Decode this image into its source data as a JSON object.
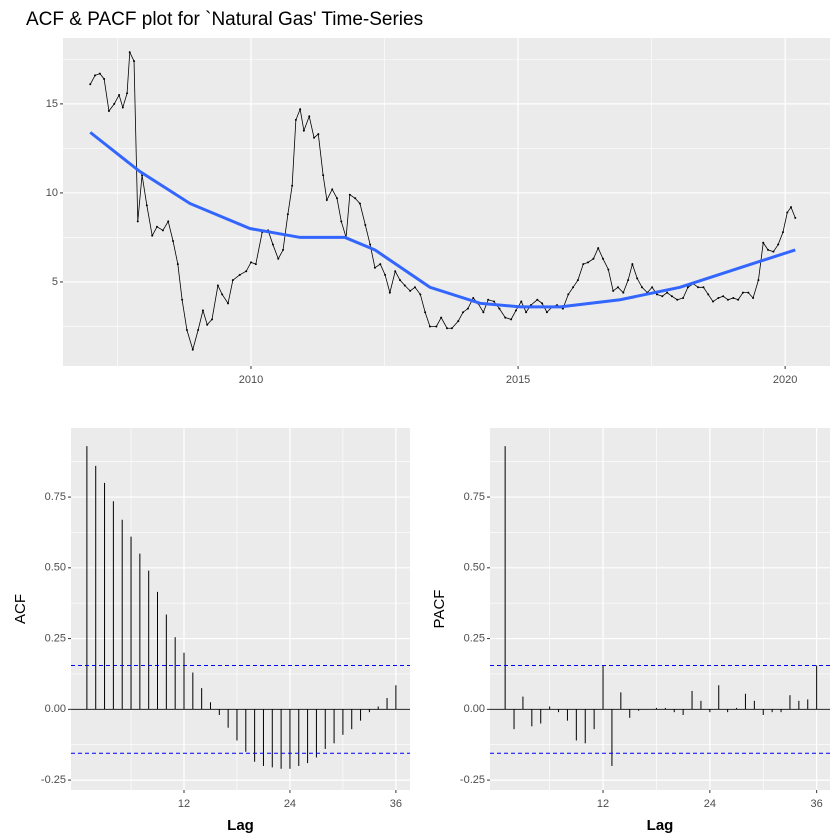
{
  "chart_data": [
    {
      "type": "line",
      "title": "ACF & PACF plot for `Natural Gas' Time-Series",
      "series": [
        {
          "color": "#000000",
          "points": true,
          "x": [
            2006.99,
            2007.08,
            2007.17,
            2007.25,
            2007.34,
            2007.44,
            2007.53,
            2007.6,
            2007.68,
            2007.73,
            2007.81,
            2007.88,
            2007.96,
            2008.05,
            2008.15,
            2008.24,
            2008.35,
            2008.45,
            2008.54,
            2008.63,
            2008.71,
            2008.8,
            2008.91,
            2009.01,
            2009.1,
            2009.18,
            2009.27,
            2009.38,
            2009.46,
            2009.57,
            2009.66,
            2009.79,
            2009.91,
            2010.0,
            2010.09,
            2010.21,
            2010.32,
            2010.41,
            2010.51,
            2010.6,
            2010.69,
            2010.77,
            2010.84,
            2010.92,
            2010.99,
            2011.09,
            2011.18,
            2011.26,
            2011.35,
            2011.42,
            2011.52,
            2011.61,
            2011.69,
            2011.78,
            2011.85,
            2011.95,
            2012.04,
            2012.14,
            2012.23,
            2012.32,
            2012.42,
            2012.51,
            2012.6,
            2012.7,
            2012.79,
            2012.88,
            2012.98,
            2013.07,
            2013.17,
            2013.26,
            2013.35,
            2013.47,
            2013.56,
            2013.67,
            2013.76,
            2013.88,
            2013.97,
            2014.06,
            2014.16,
            2014.25,
            2014.35,
            2014.44,
            2014.55,
            2014.65,
            2014.76,
            2014.87,
            2014.96,
            2015.06,
            2015.15,
            2015.24,
            2015.36,
            2015.45,
            2015.54,
            2015.64,
            2015.73,
            2015.84,
            2015.94,
            2016.03,
            2016.12,
            2016.22,
            2016.31,
            2016.41,
            2016.5,
            2016.59,
            2016.69,
            2016.78,
            2016.87,
            2016.97,
            2017.06,
            2017.14,
            2017.23,
            2017.32,
            2017.42,
            2017.51,
            2017.6,
            2017.7,
            2017.79,
            2017.88,
            2017.98,
            2018.09,
            2018.18,
            2018.28,
            2018.37,
            2018.47,
            2018.56,
            2018.65,
            2018.75,
            2018.84,
            2018.93,
            2019.03,
            2019.12,
            2019.21,
            2019.31,
            2019.4,
            2019.5,
            2019.59,
            2019.68,
            2019.78,
            2019.87,
            2019.96,
            2020.04,
            2020.11,
            2020.19
          ],
          "values": [
            16.1,
            16.6,
            16.7,
            16.4,
            14.6,
            15.0,
            15.5,
            14.8,
            15.6,
            17.9,
            17.4,
            8.4,
            11.0,
            9.3,
            7.6,
            8.1,
            7.9,
            8.4,
            7.3,
            6.0,
            4.0,
            2.3,
            1.2,
            2.3,
            3.4,
            2.6,
            2.9,
            4.8,
            4.3,
            3.8,
            5.1,
            5.4,
            5.6,
            6.1,
            6.0,
            7.8,
            7.9,
            7.1,
            6.3,
            6.8,
            8.8,
            10.4,
            14.1,
            14.7,
            13.5,
            14.3,
            13.1,
            13.3,
            11.0,
            9.6,
            10.2,
            9.7,
            8.4,
            7.5,
            9.9,
            9.7,
            9.4,
            8.2,
            7.1,
            5.8,
            6.0,
            5.4,
            4.4,
            5.6,
            5.1,
            4.8,
            4.5,
            4.7,
            4.3,
            3.3,
            2.5,
            2.5,
            3.0,
            2.4,
            2.4,
            2.8,
            3.3,
            3.5,
            4.1,
            3.8,
            3.3,
            4.0,
            3.9,
            3.5,
            3.0,
            2.9,
            3.4,
            3.9,
            3.3,
            3.7,
            4.0,
            3.8,
            3.3,
            3.6,
            3.7,
            3.5,
            4.3,
            4.7,
            5.1,
            6.0,
            6.1,
            6.3,
            6.9,
            6.3,
            5.7,
            4.5,
            4.7,
            4.4,
            5.1,
            6.0,
            5.2,
            4.7,
            4.4,
            4.7,
            4.3,
            4.2,
            4.4,
            4.2,
            4.0,
            4.1,
            4.7,
            4.9,
            4.7,
            4.7,
            4.3,
            3.9,
            4.1,
            4.2,
            4.0,
            4.1,
            4.0,
            4.4,
            4.4,
            4.1,
            5.1,
            7.2,
            6.8,
            6.7,
            7.1,
            7.8,
            8.9,
            9.2,
            8.6
          ]
        },
        {
          "color": "#3366ff",
          "points": false,
          "x": [
            2006.99,
            2007.92,
            2008.86,
            2009.98,
            2010.92,
            2011.76,
            2012.32,
            2013.35,
            2014.29,
            2015.04,
            2015.79,
            2016.91,
            2018.03,
            2019.16,
            2020.19
          ],
          "values": [
            13.4,
            11.2,
            9.4,
            8.0,
            7.5,
            7.5,
            6.8,
            4.7,
            3.8,
            3.6,
            3.6,
            4.0,
            4.7,
            5.8,
            6.8
          ]
        }
      ],
      "xlim": [
        2006.48,
        2020.84
      ],
      "xticks": [
        2010,
        2015,
        2020
      ],
      "ylim": [
        0.28,
        18.7
      ],
      "yticks": [
        5,
        10,
        15
      ],
      "grid": true
    },
    {
      "type": "bar",
      "xlabel": "Lag",
      "ylabel": "ACF",
      "color": "#000000",
      "x": [
        1,
        2,
        3,
        4,
        5,
        6,
        7,
        8,
        9,
        10,
        11,
        12,
        13,
        14,
        15,
        16,
        17,
        18,
        19,
        20,
        21,
        22,
        23,
        24,
        25,
        26,
        27,
        28,
        29,
        30,
        31,
        32,
        33,
        34,
        35,
        36
      ],
      "values": [
        0.93,
        0.86,
        0.8,
        0.735,
        0.67,
        0.61,
        0.55,
        0.49,
        0.415,
        0.335,
        0.255,
        0.2,
        0.13,
        0.075,
        0.025,
        -0.02,
        -0.065,
        -0.11,
        -0.15,
        -0.185,
        -0.2,
        -0.205,
        -0.21,
        -0.21,
        -0.2,
        -0.19,
        -0.17,
        -0.14,
        -0.12,
        -0.09,
        -0.07,
        -0.04,
        -0.01,
        0.01,
        0.04,
        0.085
      ],
      "hlines": [
        0.155,
        -0.155
      ],
      "hline_color": "#0000ff",
      "xlim": [
        -0.8,
        37.6
      ],
      "xticks": [
        12,
        24,
        36
      ],
      "ylim": [
        -0.285,
        0.994
      ],
      "yticks": [
        -0.25,
        {
          "value": 0,
          "label": "0.00"
        },
        0.25,
        {
          "value": 0.5,
          "label": "0.50"
        },
        0.75
      ],
      "grid": true
    },
    {
      "type": "bar",
      "xlabel": "Lag",
      "ylabel": "PACF",
      "color": "#000000",
      "x": [
        1,
        2,
        3,
        4,
        5,
        6,
        7,
        8,
        9,
        10,
        11,
        12,
        13,
        14,
        15,
        16,
        17,
        18,
        19,
        20,
        21,
        22,
        23,
        24,
        25,
        26,
        27,
        28,
        29,
        30,
        31,
        32,
        33,
        34,
        35,
        36
      ],
      "values": [
        0.93,
        -0.07,
        0.045,
        -0.06,
        -0.05,
        0.01,
        -0.01,
        -0.04,
        -0.11,
        -0.12,
        -0.07,
        0.155,
        -0.2,
        0.06,
        -0.03,
        -0.005,
        0,
        0.005,
        0.005,
        -0.01,
        -0.02,
        0.065,
        0.03,
        -0.01,
        0.085,
        -0.01,
        0.005,
        0.055,
        0.03,
        -0.02,
        -0.01,
        -0.01,
        0.05,
        0.03,
        0.035,
        0.155
      ],
      "hlines": [
        0.155,
        -0.155
      ],
      "hline_color": "#0000ff",
      "xlim": [
        -0.7,
        37.5
      ],
      "xticks": [
        12,
        24,
        36
      ],
      "ylim": [
        -0.285,
        0.994
      ],
      "yticks": [
        -0.25,
        {
          "value": 0,
          "label": "0.00"
        },
        0.25,
        {
          "value": 0.5,
          "label": "0.50"
        },
        0.75
      ],
      "grid": true
    }
  ]
}
